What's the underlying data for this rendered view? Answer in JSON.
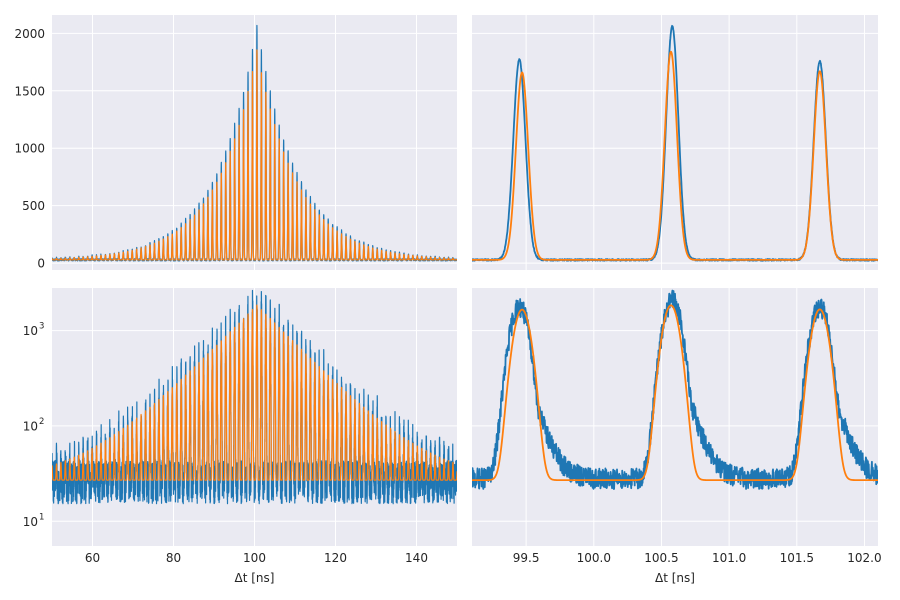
{
  "colors": {
    "background": "#ffffff",
    "axes_face": "#eaeaf2",
    "grid": "#ffffff",
    "text": "#262626",
    "data_series": "#1f77b4",
    "fit_series": "#ff7f0e"
  },
  "chart_data": [
    {
      "type": "line",
      "panel": "top-left",
      "xlabel": "",
      "ylabel": "",
      "xlim": [
        50,
        150
      ],
      "ylim": [
        -60,
        2160
      ],
      "yscale": "linear",
      "xticks": [
        60,
        80,
        100,
        120,
        140
      ],
      "yticks": [
        0,
        500,
        1000,
        1500,
        2000
      ],
      "ytick_labels": [
        "0",
        "500",
        "1000",
        "1500",
        "2000"
      ],
      "show_xtick_labels": false,
      "grid": true,
      "peak_spacing_ns": 1.1,
      "peak_width_ns": 0.085,
      "series": [
        {
          "role": "data",
          "color": "#1f77b4",
          "peak_center": 100.6,
          "peak_height": 2050,
          "decay_ns": 10.0,
          "baseline": 28,
          "noise": 9
        },
        {
          "role": "fit",
          "color": "#ff7f0e",
          "peak_center": 100.6,
          "peak_height": 1830,
          "decay_ns": 10.0,
          "baseline": 28,
          "noise": 0
        }
      ]
    },
    {
      "type": "line",
      "panel": "top-right",
      "xlabel": "",
      "ylabel": "",
      "xlim": [
        99.1,
        102.1
      ],
      "ylim": [
        -60,
        2160
      ],
      "yscale": "linear",
      "xticks": [
        99.5,
        100.0,
        100.5,
        101.0,
        101.5,
        102.0
      ],
      "yticks": [
        0,
        500,
        1000,
        1500,
        2000
      ],
      "show_xtick_labels": false,
      "show_ytick_labels": false,
      "grid": true,
      "series": [
        {
          "role": "data",
          "color": "#1f77b4",
          "peaks": [
            {
              "x": 99.45,
              "y": 1770
            },
            {
              "x": 100.58,
              "y": 2060
            },
            {
              "x": 101.67,
              "y": 1760
            }
          ],
          "width": 0.045,
          "baseline": 28,
          "noise": 7
        },
        {
          "role": "fit",
          "color": "#ff7f0e",
          "peaks": [
            {
              "x": 99.47,
              "y": 1660
            },
            {
              "x": 100.57,
              "y": 1840
            },
            {
              "x": 101.67,
              "y": 1670
            }
          ],
          "width": 0.045,
          "baseline": 28,
          "noise": 0
        }
      ]
    },
    {
      "type": "line",
      "panel": "bottom-left",
      "xlabel": "Δt [ns]",
      "ylabel": "",
      "xlim": [
        50,
        150
      ],
      "ylim": [
        5.5,
        2800
      ],
      "yscale": "log",
      "xticks": [
        60,
        80,
        100,
        120,
        140
      ],
      "xtick_labels": [
        "60",
        "80",
        "100",
        "120",
        "140"
      ],
      "yticks": [
        10,
        100,
        1000
      ],
      "ytick_labels": [
        "10",
        "10",
        "10"
      ],
      "ytick_exponents": [
        "1",
        "2",
        "3"
      ],
      "grid": true,
      "peak_spacing_ns": 1.1,
      "peak_width_ns": 0.085,
      "series": [
        {
          "role": "data",
          "color": "#1f77b4",
          "peak_center": 100.6,
          "peak_height": 2050,
          "decay_ns": 10.0,
          "baseline": 27,
          "noise_log_spread": 0.45
        },
        {
          "role": "fit",
          "color": "#ff7f0e",
          "peak_center": 100.6,
          "peak_height": 1830,
          "decay_ns": 10.0,
          "baseline": 27,
          "noise_log_spread": 0
        }
      ]
    },
    {
      "type": "line",
      "panel": "bottom-right",
      "xlabel": "Δt [ns]",
      "ylabel": "",
      "xlim": [
        99.1,
        102.1
      ],
      "ylim": [
        5.5,
        2800
      ],
      "yscale": "log",
      "xticks": [
        99.5,
        100.0,
        100.5,
        101.0,
        101.5,
        102.0
      ],
      "xtick_labels": [
        "99.5",
        "100.0",
        "100.5",
        "101.0",
        "101.5",
        "102.0"
      ],
      "yticks": [
        10,
        100,
        1000
      ],
      "show_ytick_labels": false,
      "grid": true,
      "series": [
        {
          "role": "data",
          "color": "#1f77b4",
          "peaks": [
            {
              "x": 99.45,
              "y": 1770
            },
            {
              "x": 100.58,
              "y": 2060
            },
            {
              "x": 101.67,
              "y": 1760
            }
          ],
          "width": 0.06,
          "tail": 0.09,
          "baseline": 28,
          "noise_log_spread": 0.22
        },
        {
          "role": "fit",
          "color": "#ff7f0e",
          "peaks": [
            {
              "x": 99.47,
              "y": 1660
            },
            {
              "x": 100.57,
              "y": 1840
            },
            {
              "x": 101.67,
              "y": 1670
            }
          ],
          "width": 0.055,
          "baseline": 27,
          "noise_log_spread": 0
        }
      ]
    }
  ]
}
